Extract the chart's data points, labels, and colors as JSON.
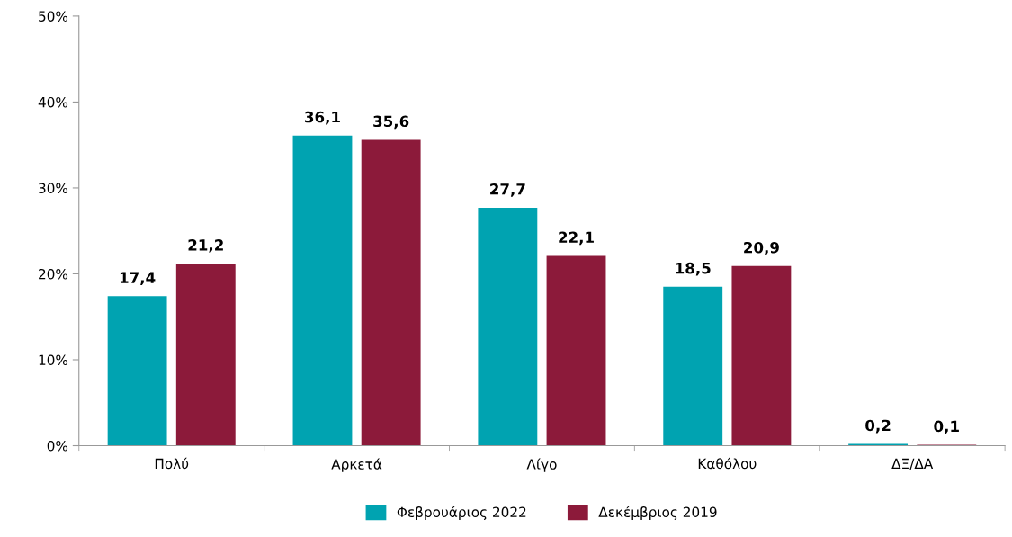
{
  "chart_data": {
    "type": "bar",
    "categories": [
      "Πολύ",
      "Αρκετά",
      "Λίγο",
      "Καθόλου",
      "ΔΞ/ΔΑ"
    ],
    "series": [
      {
        "name": "Φεβρουάριος 2022",
        "color": "#00a3b1",
        "values": [
          17.4,
          36.1,
          27.7,
          18.5,
          0.2
        ],
        "value_labels": [
          "17,4",
          "36,1",
          "27,7",
          "18,5",
          "0,2"
        ]
      },
      {
        "name": "Δεκέμβριος 2019",
        "color": "#8c1a3a",
        "values": [
          21.2,
          35.6,
          22.1,
          20.9,
          0.1
        ],
        "value_labels": [
          "21,2",
          "35,6",
          "22,1",
          "20,9",
          "0,1"
        ]
      }
    ],
    "ylim": [
      0,
      50
    ],
    "yticks": [
      {
        "value": 0,
        "label": "0%"
      },
      {
        "value": 10,
        "label": "10%"
      },
      {
        "value": 20,
        "label": "20%"
      },
      {
        "value": 30,
        "label": "30%"
      },
      {
        "value": 40,
        "label": "40%"
      },
      {
        "value": 50,
        "label": "50%"
      }
    ],
    "grid": false,
    "legend": "bottom"
  }
}
